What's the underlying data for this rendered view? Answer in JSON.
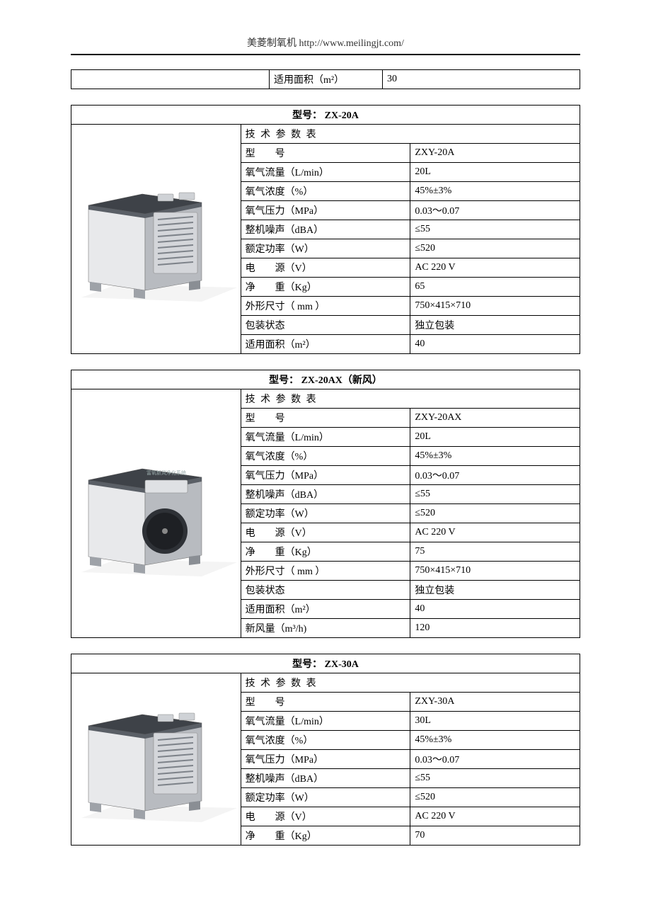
{
  "header": {
    "text": "美菱制氧机 http://www.meilingjt.com/"
  },
  "fragment_row": {
    "label": "适用面积（m²）",
    "value": "30"
  },
  "labels": {
    "model_prefix": "型号：",
    "param_table": "技 术 参 数 表",
    "model": "型　　号",
    "flow": "氧气流量（L/min）",
    "concentration": "氧气浓度（%）",
    "pressure": "氧气压力（MPa）",
    "noise": "整机噪声（dBA）",
    "power": "额定功率（W）",
    "voltage": "电　　源（V）",
    "weight": "净　　重（Kg）",
    "dims": "外形尺寸（ mm ）",
    "packaging": "包装状态",
    "area": "适用面积（m²）",
    "fresh_air": "新风量（m³/h)"
  },
  "products": [
    {
      "header_model": "ZX-20A",
      "illus_variant": "side-vent",
      "rows": [
        {
          "k": "model",
          "v": "ZXY-20A"
        },
        {
          "k": "flow",
          "v": "20L"
        },
        {
          "k": "concentration",
          "v": "45%±3%"
        },
        {
          "k": "pressure",
          "v": "0.03～0.07"
        },
        {
          "k": "noise",
          "v": "≤55"
        },
        {
          "k": "power",
          "v": "≤520"
        },
        {
          "k": "voltage",
          "v": "AC 220 V"
        },
        {
          "k": "weight",
          "v": "65"
        },
        {
          "k": "dims",
          "v": "750×415×710"
        },
        {
          "k": "packaging",
          "v": "独立包装"
        },
        {
          "k": "area",
          "v": "40"
        }
      ]
    },
    {
      "header_model": "ZX-20AX（新风）",
      "illus_variant": "fan",
      "rows": [
        {
          "k": "model",
          "v": "ZXY-20AX"
        },
        {
          "k": "flow",
          "v": "20L"
        },
        {
          "k": "concentration",
          "v": "45%±3%"
        },
        {
          "k": "pressure",
          "v": "0.03～0.07"
        },
        {
          "k": "noise",
          "v": "≤55"
        },
        {
          "k": "power",
          "v": "≤520"
        },
        {
          "k": "voltage",
          "v": "AC 220 V"
        },
        {
          "k": "weight",
          "v": "75"
        },
        {
          "k": "dims",
          "v": "750×415×710"
        },
        {
          "k": "packaging",
          "v": "独立包装"
        },
        {
          "k": "area",
          "v": "40"
        },
        {
          "k": "fresh_air",
          "v": "120"
        }
      ]
    },
    {
      "header_model": "ZX-30A",
      "illus_variant": "side-vent",
      "rows": [
        {
          "k": "model",
          "v": "ZXY-30A"
        },
        {
          "k": "flow",
          "v": "30L"
        },
        {
          "k": "concentration",
          "v": "45%±3%"
        },
        {
          "k": "pressure",
          "v": "0.03～0.07"
        },
        {
          "k": "noise",
          "v": "≤55"
        },
        {
          "k": "power",
          "v": "≤520"
        },
        {
          "k": "voltage",
          "v": "AC 220 V"
        },
        {
          "k": "weight",
          "v": "70"
        }
      ]
    }
  ],
  "style": {
    "colors": {
      "cabinet_light": "#e8e9eb",
      "cabinet_shadow": "#b8bbc0",
      "cabinet_dark": "#5a5f66",
      "cabinet_top": "#3e4248",
      "vent": "#7e838a",
      "fan": "#2e3136",
      "floor": "#f4f4f4"
    }
  }
}
